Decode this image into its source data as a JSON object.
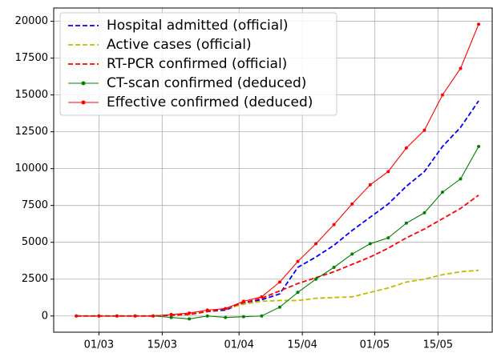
{
  "chart_data": {
    "type": "line",
    "x": [
      "25/02",
      "01/03",
      "05/03",
      "09/03",
      "13/03",
      "17/03",
      "21/03",
      "25/03",
      "29/03",
      "02/04",
      "06/04",
      "10/04",
      "14/04",
      "18/04",
      "22/04",
      "26/04",
      "30/04",
      "04/05",
      "08/05",
      "12/05",
      "16/05",
      "20/05",
      "24/05"
    ],
    "xlim": [
      "20/02",
      "27/05"
    ],
    "xticks": [
      "01/03",
      "15/03",
      "01/04",
      "15/04",
      "01/05",
      "15/05"
    ],
    "ylim": [
      -1100,
      20900
    ],
    "yticks": [
      0,
      2500,
      5000,
      7500,
      10000,
      12500,
      15000,
      17500,
      20000
    ],
    "grid": true,
    "legend": "upper left",
    "series": [
      {
        "name": "Hospital admitted (official)",
        "color": "#0000ff",
        "linestyle": "dashed",
        "marker": "none",
        "values": [
          0,
          0,
          0,
          0,
          0,
          50,
          150,
          300,
          400,
          900,
          1100,
          1500,
          3300,
          4000,
          4800,
          5800,
          6700,
          7600,
          8800,
          9800,
          11500,
          12800,
          14600
        ]
      },
      {
        "name": "Active cases (official)",
        "color": "#bfbf00",
        "linestyle": "dashed",
        "marker": "none",
        "values": [
          0,
          0,
          0,
          0,
          0,
          50,
          150,
          300,
          500,
          800,
          1000,
          1050,
          1050,
          1200,
          1250,
          1300,
          1600,
          1900,
          2300,
          2500,
          2800,
          3000,
          3100
        ]
      },
      {
        "name": "RT-PCR confirmed (official)",
        "color": "#ff0000",
        "linestyle": "dashed",
        "marker": "none",
        "values": [
          0,
          0,
          0,
          0,
          0,
          50,
          100,
          300,
          500,
          900,
          1200,
          1700,
          2200,
          2600,
          3000,
          3500,
          4000,
          4600,
          5300,
          5900,
          6600,
          7300,
          8200
        ]
      },
      {
        "name": "CT-scan confirmed (deduced)",
        "color": "#008000",
        "linestyle": "solid",
        "marker": "dot",
        "values": [
          0,
          0,
          0,
          0,
          0,
          -100,
          -200,
          0,
          -100,
          -50,
          0,
          600,
          1600,
          2500,
          3300,
          4200,
          4900,
          5300,
          6300,
          7000,
          8400,
          9300,
          11500
        ]
      },
      {
        "name": "Effective confirmed (deduced)",
        "color": "#ff0000",
        "linestyle": "solid",
        "marker": "dot",
        "values": [
          0,
          0,
          0,
          0,
          0,
          100,
          200,
          400,
          500,
          1000,
          1300,
          2300,
          3700,
          4900,
          6200,
          7600,
          8900,
          9800,
          11400,
          12600,
          15000,
          16800,
          19800
        ]
      }
    ]
  }
}
